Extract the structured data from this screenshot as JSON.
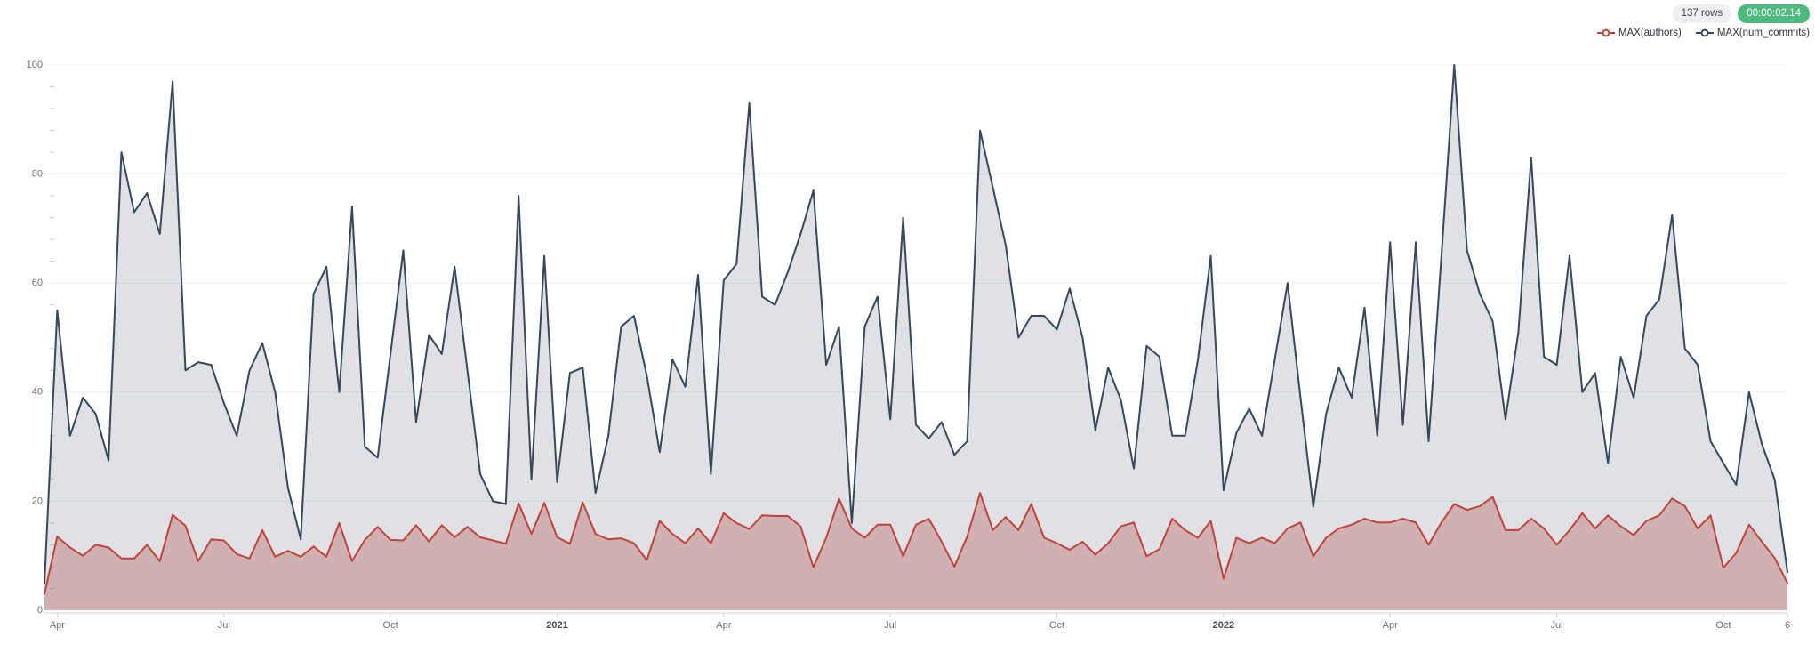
{
  "header": {
    "rows_badge": "137 rows",
    "time_badge": "00:00:02.14",
    "rows_badge_bg": "#efeff3",
    "rows_badge_color": "#3f3f49",
    "time_badge_bg": "#4eb97f",
    "time_badge_color": "#ffffff"
  },
  "chart_data": {
    "type": "area",
    "title": "",
    "xlabel": "",
    "ylabel": "",
    "x_unit": "week",
    "n_points": 137,
    "ylim": [
      0,
      100
    ],
    "y_ticks": [
      0,
      20,
      40,
      60,
      80,
      100
    ],
    "y_minor_tick_step": 4,
    "grid": "horizontal-major",
    "legend_position": "top-right",
    "x_ticks": [
      {
        "week": 1,
        "label": "Apr",
        "bold": false
      },
      {
        "week": 14,
        "label": "Jul",
        "bold": false
      },
      {
        "week": 27,
        "label": "Oct",
        "bold": false
      },
      {
        "week": 40,
        "label": "2021",
        "bold": true
      },
      {
        "week": 53,
        "label": "Apr",
        "bold": false
      },
      {
        "week": 66,
        "label": "Jul",
        "bold": false
      },
      {
        "week": 79,
        "label": "Oct",
        "bold": false
      },
      {
        "week": 92,
        "label": "2022",
        "bold": true
      },
      {
        "week": 105,
        "label": "Apr",
        "bold": false
      },
      {
        "week": 118,
        "label": "Jul",
        "bold": false
      },
      {
        "week": 131,
        "label": "Oct",
        "bold": false
      },
      {
        "week": 136,
        "label": "6",
        "bold": false
      }
    ],
    "series": [
      {
        "name": "MAX(num_commits)",
        "color": "#37475a",
        "fill": "rgba(55,71,90,0.16)",
        "values": [
          5,
          55,
          32,
          39,
          36,
          27.5,
          84,
          73,
          76.5,
          69,
          97,
          44,
          45.5,
          45,
          38,
          32,
          44,
          49,
          40,
          22.5,
          13,
          58,
          63,
          40,
          74,
          30,
          28,
          47,
          66,
          34.5,
          50.5,
          47,
          63,
          44,
          25,
          20,
          19.5,
          76,
          24,
          65,
          23.5,
          43.5,
          44.5,
          21.5,
          32,
          52,
          54,
          43,
          29,
          46,
          41,
          61.5,
          25,
          60.5,
          63.5,
          93,
          57.5,
          56,
          62,
          69,
          77,
          45,
          52,
          16,
          52,
          57.5,
          35,
          72,
          34,
          31.5,
          34.5,
          28.5,
          31,
          88,
          77.5,
          67,
          50,
          54,
          54,
          51.5,
          59,
          50,
          33,
          44.5,
          38.5,
          26,
          48.5,
          46.5,
          32,
          32,
          46,
          65,
          22,
          32.5,
          37,
          32,
          46,
          60,
          39,
          19,
          36,
          44.5,
          39,
          55.5,
          32,
          67.5,
          34,
          67.5,
          31,
          65,
          100,
          66,
          58,
          53,
          35,
          51,
          83,
          46.5,
          45,
          65,
          40,
          43.5,
          27,
          46.5,
          39,
          54,
          57,
          72.5,
          48,
          45,
          31,
          27,
          23,
          40,
          30.5,
          24,
          7
        ]
      },
      {
        "name": "MAX(authors)",
        "color": "#c2413c",
        "fill": "rgba(176,65,60,0.30)",
        "values": [
          3,
          13.5,
          11.5,
          10,
          12,
          11.5,
          9.5,
          9.5,
          12,
          9,
          17.5,
          15.5,
          9,
          13,
          12.8,
          10.3,
          9.5,
          14.7,
          9.8,
          10.9,
          9.8,
          11.7,
          9.8,
          16,
          9,
          12.9,
          15.3,
          12.9,
          12.8,
          15.6,
          12.6,
          15.6,
          13.4,
          15.3,
          13.4,
          12.8,
          12.2,
          19.6,
          14,
          19.7,
          13.4,
          12.2,
          19.8,
          14,
          13,
          13.2,
          12.3,
          9.2,
          16.4,
          14,
          12.3,
          15,
          12.3,
          17.8,
          16,
          14.9,
          17.4,
          17.3,
          17.3,
          15.4,
          7.9,
          13.3,
          20.5,
          15,
          13.3,
          15.7,
          15.7,
          9.9,
          15.7,
          16.8,
          12.6,
          8,
          13.5,
          21.5,
          14.7,
          17.1,
          14.7,
          19.5,
          13.3,
          12.3,
          11.1,
          12.6,
          10.2,
          12.3,
          15.4,
          16.1,
          9.9,
          11.2,
          16.8,
          14.7,
          13.3,
          16.4,
          5.8,
          13.3,
          12.3,
          13.3,
          12.3,
          15,
          16.1,
          9.9,
          13.3,
          15,
          15.7,
          16.8,
          16.1,
          16.1,
          16.8,
          16.1,
          12,
          16.1,
          19.5,
          18.4,
          19.1,
          20.8,
          14.7,
          14.7,
          16.8,
          15,
          12,
          14.7,
          17.8,
          15,
          17.4,
          15.4,
          13.8,
          16.4,
          17.4,
          20.5,
          19.1,
          15,
          17.4,
          7.8,
          10.5,
          15.7,
          12.6,
          9.6,
          5
        ]
      }
    ],
    "legend_order": [
      "MAX(authors)",
      "MAX(num_commits)"
    ],
    "axis_colors": {
      "gridline": "#edf0f6",
      "axis_line": "#cfcfd8",
      "tick": "#c9c9d3",
      "tick_label": "#6e6e78",
      "year_label": "#4a4a52"
    }
  }
}
